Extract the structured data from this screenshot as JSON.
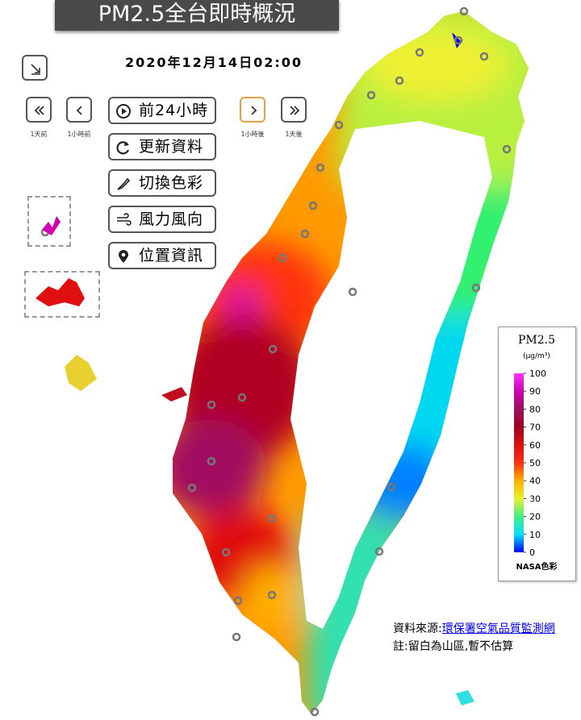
{
  "header": {
    "title": "PM2.5全台即時概況",
    "datetime": "2020年12月14日02:00"
  },
  "nav": [
    "1天前",
    "1小時前",
    "1小時後",
    "1天後"
  ],
  "buttons": [
    "前24小時",
    "更新資料",
    "切換色彩",
    "風力風向",
    "位置資訊"
  ],
  "legend": {
    "title": "PM2.5",
    "unit": "(μg/m³)",
    "lim": [
      0,
      100
    ],
    "ticks": [
      0,
      10,
      20,
      30,
      40,
      50,
      60,
      70,
      80,
      90,
      100
    ],
    "colors": [
      "#0000ff",
      "#00e0ff",
      "#40f080",
      "#e8f030",
      "#ffb000",
      "#ff3010",
      "#e01010",
      "#a00020",
      "#a01060",
      "#d000b0",
      "#ff30ff"
    ],
    "caption": "NASA色彩"
  },
  "footer": {
    "source_label": "資料來源:",
    "source_link": "環保署空氣品質監測網",
    "note": "註:留白為山區,暫不估算"
  }
}
